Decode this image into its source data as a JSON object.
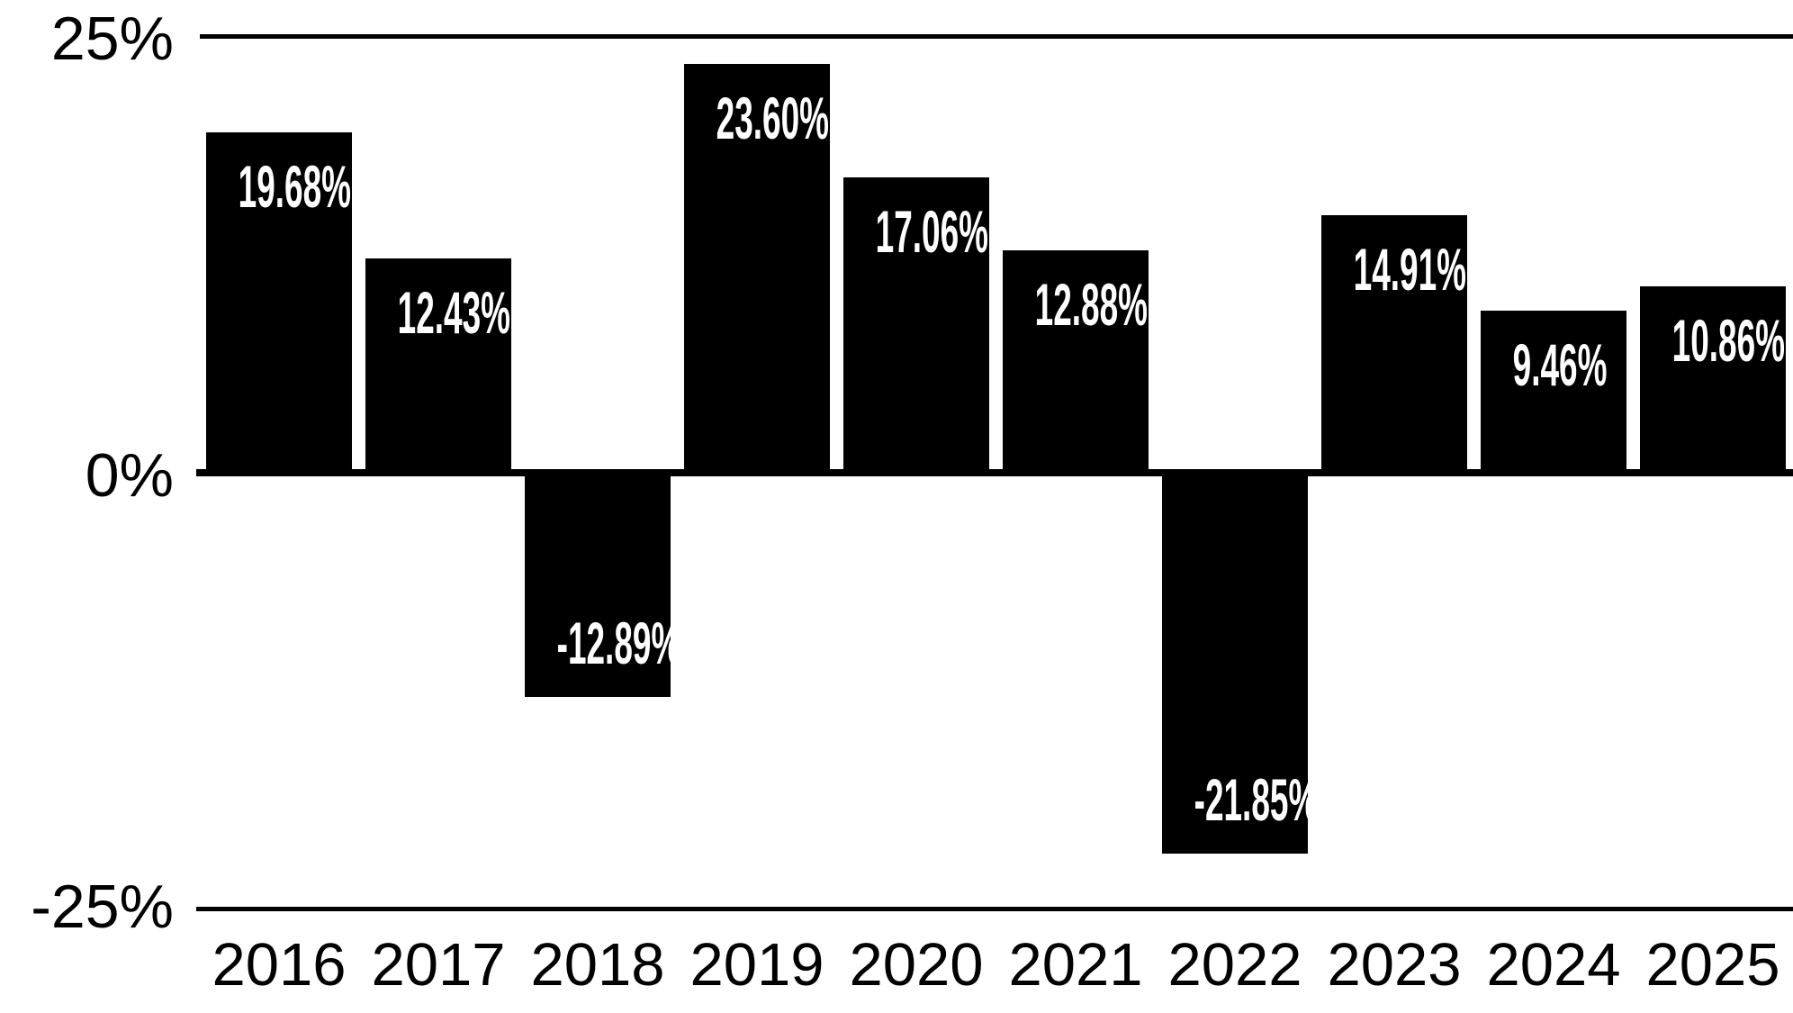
{
  "chart_data": {
    "type": "bar",
    "title": "",
    "xlabel": "",
    "ylabel": "",
    "categories": [
      "2016",
      "2017",
      "2018",
      "2019",
      "2020",
      "2021",
      "2022",
      "2023",
      "2024",
      "2025"
    ],
    "values": [
      19.68,
      12.43,
      -12.89,
      23.6,
      17.06,
      12.88,
      -21.85,
      14.91,
      9.46,
      10.86
    ],
    "bar_labels": [
      "19.68%",
      "12.43%",
      "-12.89%",
      "23.60%",
      "17.06%",
      "12.88%",
      "-21.85%",
      "14.91%",
      "9.46%",
      "10.86%"
    ],
    "ylim": [
      -25,
      25
    ],
    "yticks": [
      {
        "value": 25,
        "label": "25%"
      },
      {
        "value": 0,
        "label": "0%"
      },
      {
        "value": -25,
        "label": "-25%"
      }
    ],
    "grid": "horizontal lines at +25% and -25%, heavy zero axis line",
    "legend": "none",
    "colors": {
      "bar": "#000000",
      "bar_label_text": "#ffffff",
      "axis_text": "#000000",
      "line": "#000000",
      "background": "#ffffff"
    }
  }
}
